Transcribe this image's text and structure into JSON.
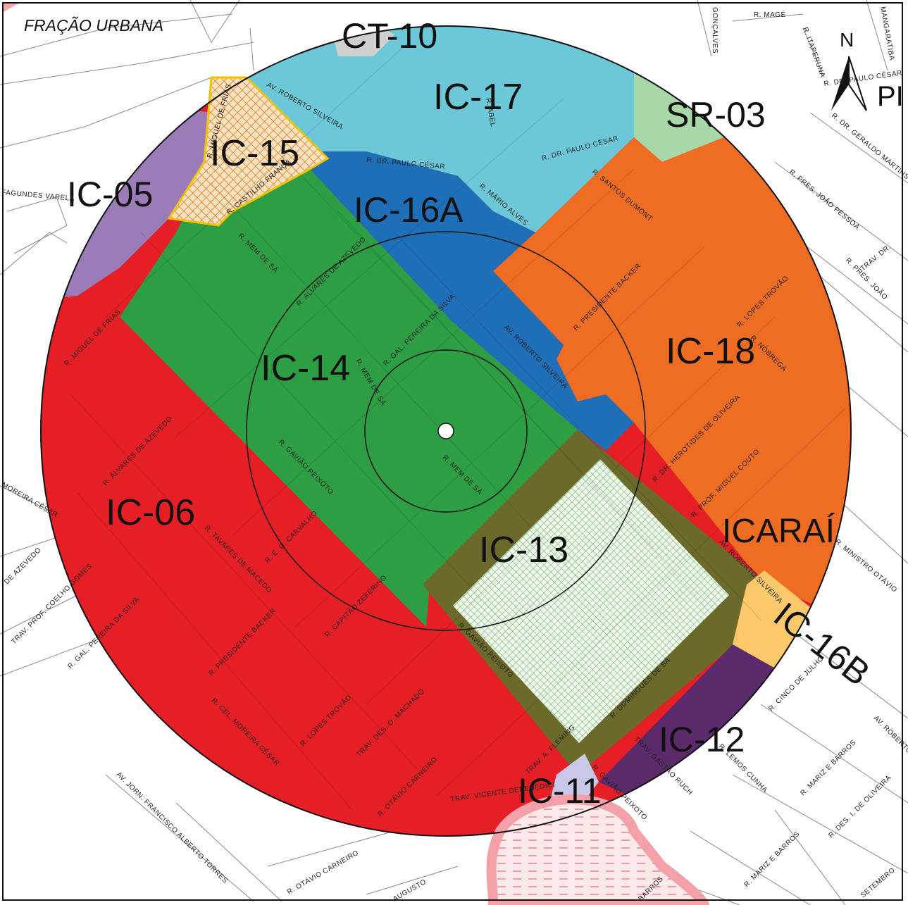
{
  "map": {
    "title": "FRAÇÃO URBANA",
    "north_label": "N",
    "partial_edge_label": "PI",
    "colors": {
      "IC-06": "#e61e26",
      "IC-14": "#2e9e45",
      "IC-16A": "#1f6fb8",
      "IC-17": "#6cc8d8",
      "IC-18": "#ef6c23",
      "IC-05": "#9b7cb8",
      "IC-15": "#f5d7a8",
      "SR-03": "#a8d8a8",
      "IC-13": "#6b6a2a",
      "IC-16B": "#fcc86a",
      "IC-12": "#5a2a6a",
      "IC-11": "#c8c8e8",
      "CT-10": "#d0d0d0",
      "lagoon": "#f4a0a8"
    },
    "zones": {
      "ct10": "CT-10",
      "ic17": "IC-17",
      "sr03": "SR-03",
      "ic15": "IC-15",
      "ic05": "IC-05",
      "ic16a": "IC-16A",
      "ic14": "IC-14",
      "ic18": "IC-18",
      "ic06": "IC-06",
      "ic13": "IC-13",
      "icarai": "ICARAÍ",
      "ic16b": "IC-16B",
      "ic12": "IC-12",
      "ic11": "IC-11"
    },
    "streets": {
      "s01": "R. MAGÉ",
      "s02": "R. ITAPERUNA",
      "s03": "MANGARATIBA",
      "s04": "R. DR. PAULO CÉSAR",
      "s05": "GONÇALVES",
      "s06": "R. MIGUEL DE FRIAS",
      "s07": "AV. ROBERTO SILVEIRA",
      "s08": "R. DR. PAULO CÉSAR",
      "s09": "R. DR. PAULO CÉSAR",
      "s10": "R. ABEL",
      "s11": "R. MÁRIO ALVES",
      "s12": "R. SANTOS DUMONT",
      "s13": "R. DR. GERALDO MARTINS",
      "s14": "R. PRES. JOÃO PESSOA",
      "s15": "TRAV. DR.",
      "s16": "R. PRES. JOÃO",
      "s17": "FAGUNDES VARELA",
      "s18": "R. CASTILHO FRANÇA",
      "s19": "R. MEM DE SÁ",
      "s20": "R. ALVARES DE AZEVEDO",
      "s21": "R. GAL. PEREIRA DA SILVA",
      "s22": "R. PRESIDENTE BACKER",
      "s23": "R. LOPES TROVÃO",
      "s24": "R. NÓBREGA",
      "s25": "R. MIGUEL DE FRIAS",
      "s26": "R. MEM DE SÁ",
      "s27": "AV. ROBERTO SILVEIRA",
      "s28": "R. DR. HEROTIDES DE OLIVEIRA",
      "s29": "R. ÁLVARES DE AZEVEDO",
      "s30": "R. GAVIÃO PEIXOTO",
      "s31": "R. MEM DE SÁ",
      "s32": "R. PROF. MIGUEL COUTO",
      "s33": "MOREIRA CÉSAR",
      "s34": "R. TAVARES DE MACEDO",
      "s35": "R. E. D. CARVALHO",
      "s36": "R. MINISTRO OTÁVIO",
      "s37": "DE AZEVEDO",
      "s38": "AV. ROBERTO SILVEIRA",
      "s39": "TRAV. PROF. COELHO GOMES",
      "s40": "R. GAL. PEREIRA DA SILVA",
      "s41": "R. PRESIDENTE BACKER",
      "s42": "R. CAPITÃO ZEFERINO",
      "s43": "R. GAVIÃO PEIXOTO",
      "s44": "R. DOMINGUES DE SÁ",
      "s45": "R. CINCO DE JULHO",
      "s46": "R. CEL. MOREIRA CÉSAR",
      "s47": "R. LOPES TROVÃO",
      "s48": "TRAV. DES. O. MACHADO",
      "s49": "TRAV. A. FLEMING",
      "s50": "TRAV. GASTÃO RUCH",
      "s51": "R. LEMOS CUNHA",
      "s52": "AV. ROBERTO",
      "s53": "R. OTÁVIO CARNEIRO",
      "s54": "TRAV. VICENTE DEBENEDICI",
      "s55": "R. GAVIÃO PEIXOTO",
      "s56": "R. MARIZ E BARROS",
      "s57": "R. DES. I. DE OLIVEIRA",
      "s58": "AV. JORN. FRANCISCO ALBERTO TORRES",
      "s59": "R. OTÁVIO CARNEIRO",
      "s60": "AUGUSTO",
      "s61": "BARROS",
      "s62": "R. MARIZ E BARROS",
      "s63": "SETEMBRO"
    }
  }
}
